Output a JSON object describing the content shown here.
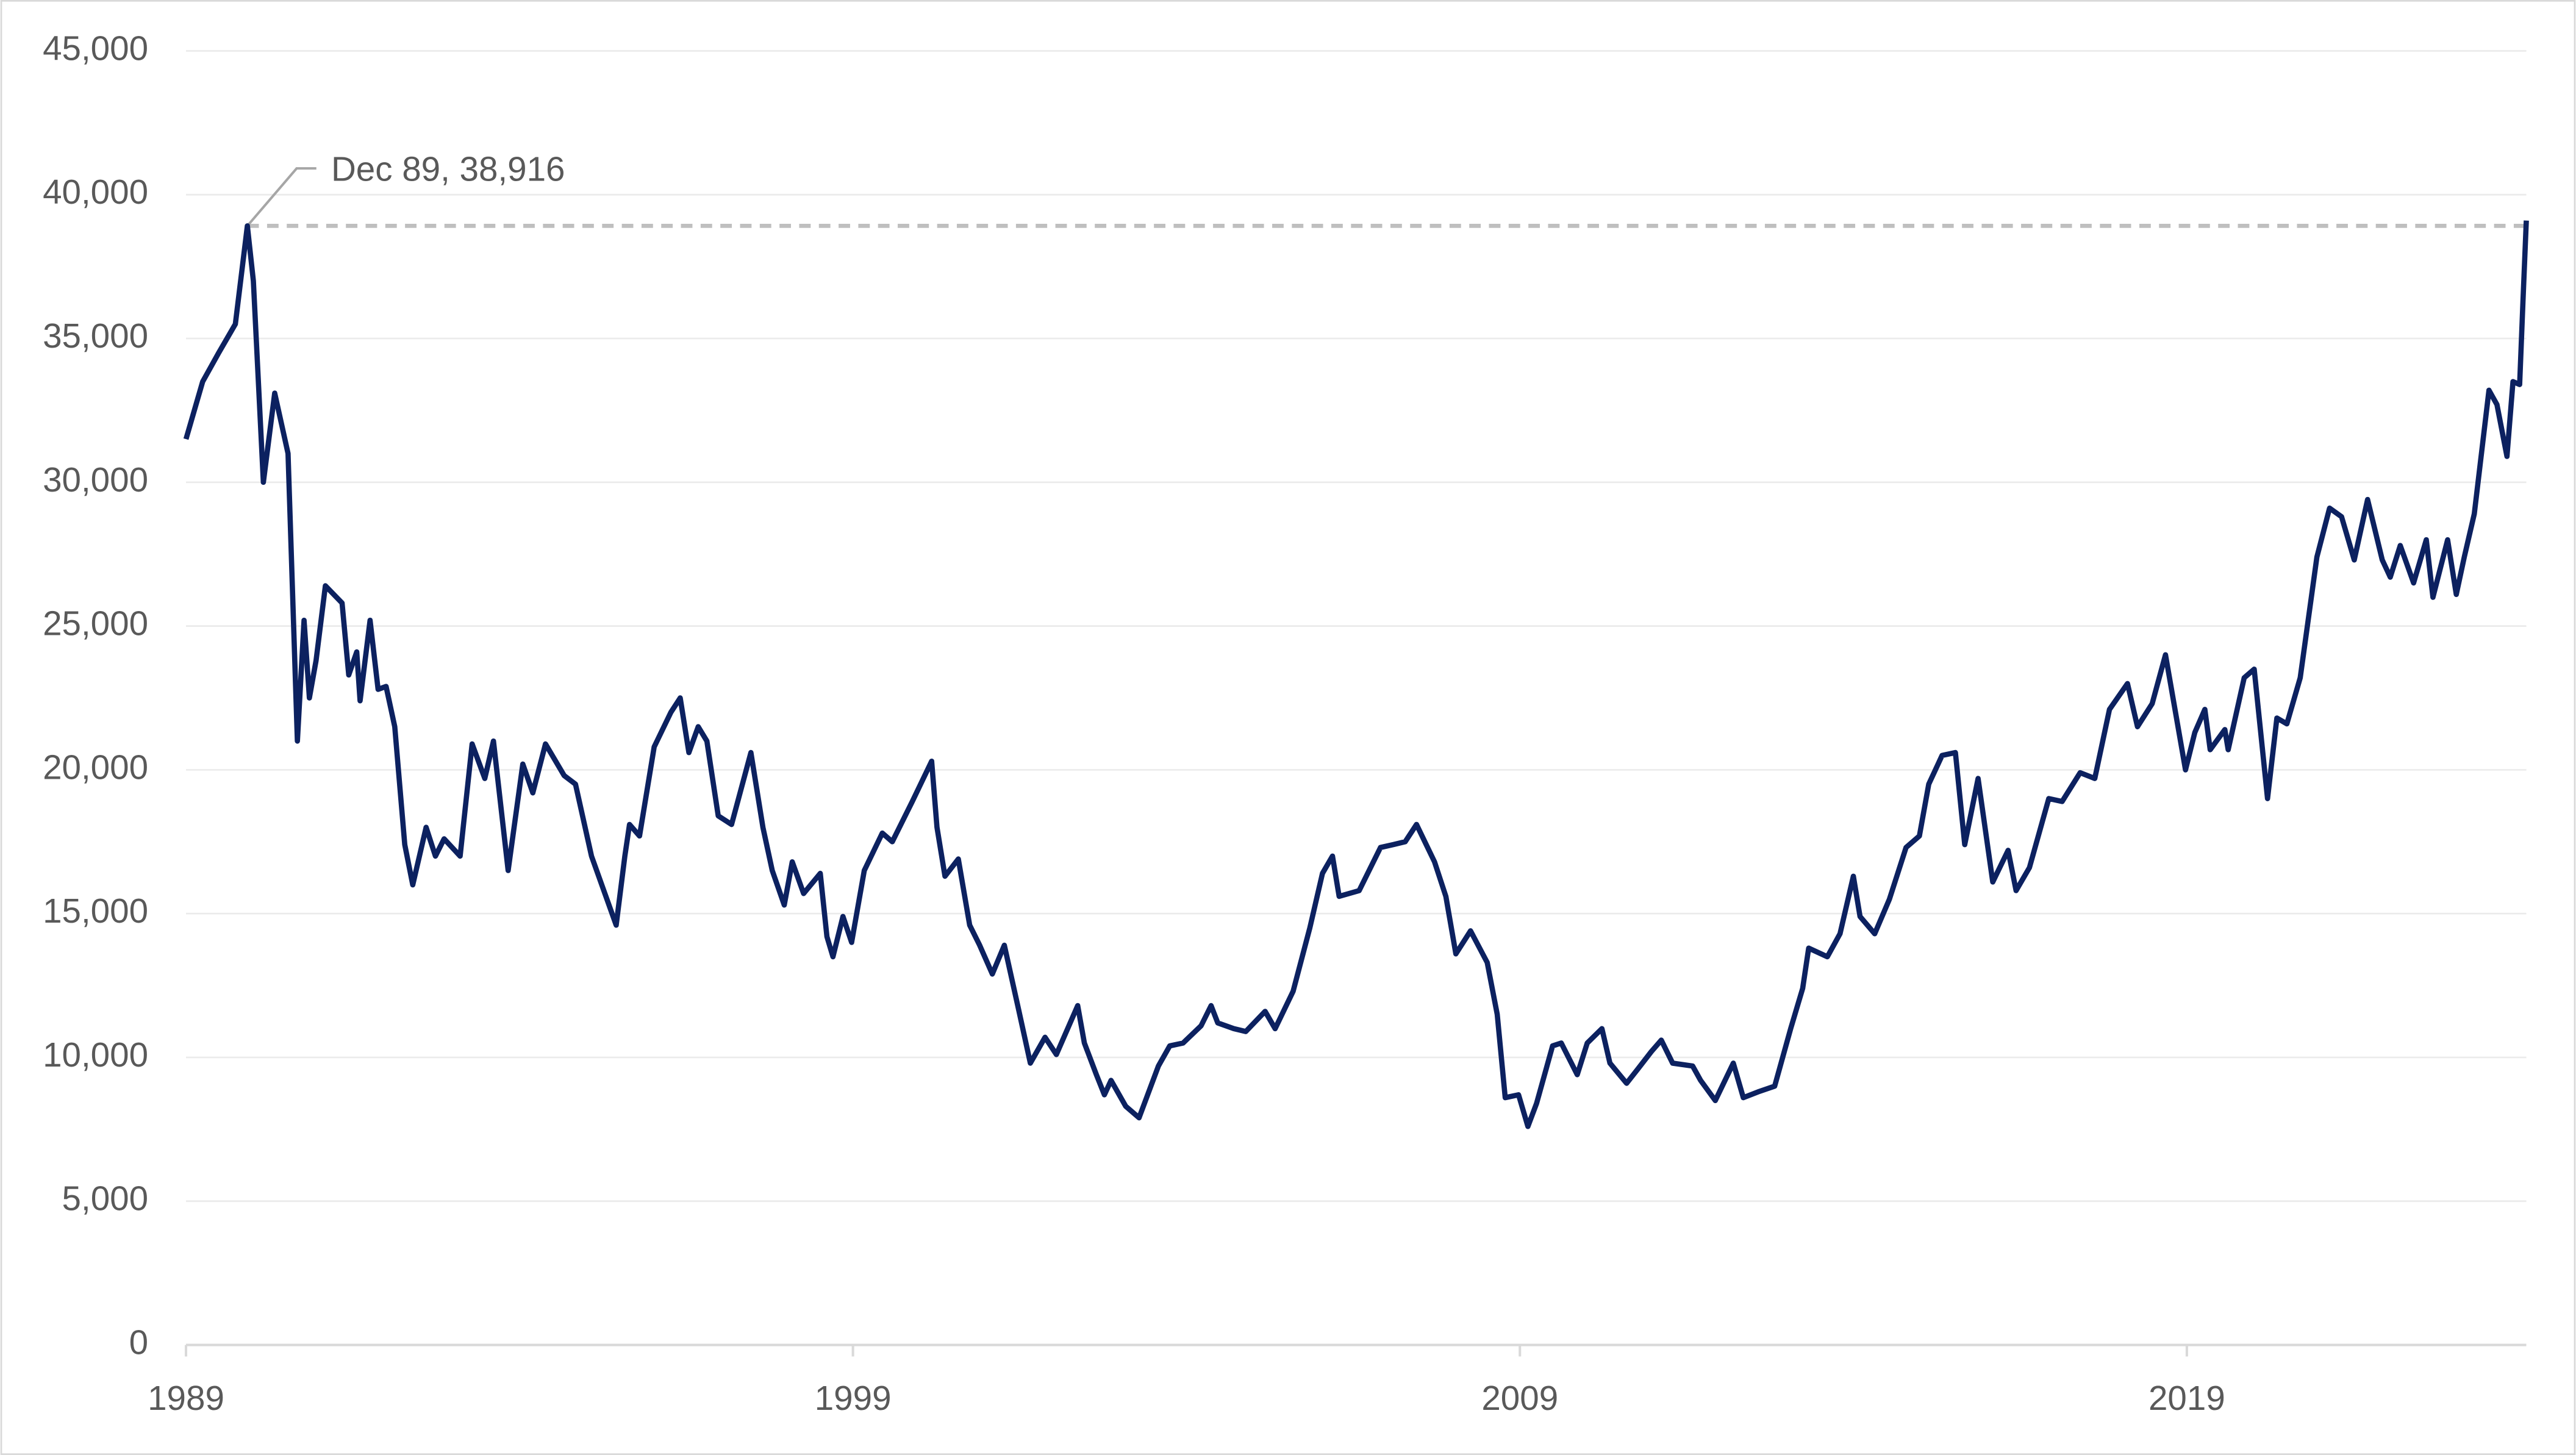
{
  "chart_data": {
    "type": "line",
    "annotation": {
      "text": "Dec 89, 38,916",
      "x": 1989.92,
      "y": 38916
    },
    "x": [
      1989.0,
      1989.25,
      1989.49,
      1989.74,
      1989.92,
      1990.01,
      1990.16,
      1990.33,
      1990.53,
      1990.67,
      1990.77,
      1990.85,
      1990.95,
      1991.09,
      1991.34,
      1991.44,
      1991.56,
      1991.61,
      1991.76,
      1991.88,
      1992.0,
      1992.13,
      1992.28,
      1992.4,
      1992.6,
      1992.74,
      1992.87,
      1993.11,
      1993.29,
      1993.48,
      1993.61,
      1993.83,
      1994.05,
      1994.2,
      1994.39,
      1994.67,
      1994.84,
      1995.08,
      1995.45,
      1995.58,
      1995.65,
      1995.8,
      1996.02,
      1996.27,
      1996.41,
      1996.54,
      1996.68,
      1996.81,
      1996.98,
      1997.18,
      1997.47,
      1997.65,
      1997.79,
      1997.97,
      1998.09,
      1998.26,
      1998.51,
      1998.61,
      1998.7,
      1998.85,
      1998.98,
      1999.17,
      1999.44,
      1999.59,
      1999.89,
      2000.18,
      2000.26,
      2000.38,
      2000.58,
      2000.75,
      2000.9,
      2001.09,
      2001.27,
      2001.49,
      2001.66,
      2001.88,
      2002.05,
      2002.37,
      2002.47,
      2002.65,
      2002.77,
      2002.87,
      2003.09,
      2003.29,
      2003.58,
      2003.75,
      2003.95,
      2004.22,
      2004.37,
      2004.47,
      2004.71,
      2004.89,
      2005.18,
      2005.33,
      2005.6,
      2005.85,
      2006.04,
      2006.19,
      2006.29,
      2006.59,
      2006.91,
      2007.1,
      2007.28,
      2007.45,
      2007.72,
      2007.89,
      2008.04,
      2008.26,
      2008.51,
      2008.66,
      2008.78,
      2008.98,
      2009.12,
      2009.25,
      2009.49,
      2009.62,
      2009.86,
      2010.01,
      2010.23,
      2010.35,
      2010.6,
      2010.77,
      2010.97,
      2011.12,
      2011.29,
      2011.59,
      2011.71,
      2011.93,
      2012.2,
      2012.35,
      2012.57,
      2012.82,
      2013.06,
      2013.24,
      2013.33,
      2013.61,
      2013.8,
      2014.0,
      2014.1,
      2014.32,
      2014.54,
      2014.79,
      2014.99,
      2015.13,
      2015.33,
      2015.53,
      2015.67,
      2015.87,
      2016.09,
      2016.32,
      2016.44,
      2016.64,
      2016.93,
      2017.13,
      2017.4,
      2017.62,
      2017.84,
      2018.11,
      2018.26,
      2018.48,
      2018.68,
      2018.98,
      2019.12,
      2019.27,
      2019.35,
      2019.57,
      2019.62,
      2019.86,
      2020.01,
      2020.21,
      2020.35,
      2020.5,
      2020.7,
      2020.95,
      2021.14,
      2021.32,
      2021.51,
      2021.71,
      2021.93,
      2022.05,
      2022.2,
      2022.4,
      2022.59,
      2022.69,
      2022.91,
      2023.04,
      2023.16,
      2023.31,
      2023.53,
      2023.65,
      2023.8,
      2023.89,
      2023.99,
      2024.04,
      2024.09
    ],
    "series": [
      {
        "color": "#0c2160",
        "values": [
          31500,
          33500,
          34500,
          35500,
          38916,
          37000,
          30000,
          33100,
          31000,
          21000,
          25200,
          22500,
          23800,
          26400,
          25800,
          23300,
          24100,
          22400,
          25200,
          22800,
          22900,
          21500,
          17400,
          16000,
          18000,
          17000,
          17600,
          17000,
          20900,
          19700,
          21000,
          16500,
          20200,
          19200,
          20900,
          19800,
          19500,
          17000,
          14600,
          17000,
          18100,
          17700,
          20800,
          22000,
          22500,
          20600,
          21500,
          21000,
          18400,
          18100,
          20600,
          18000,
          16500,
          15300,
          16800,
          15700,
          16400,
          14200,
          13500,
          14900,
          14000,
          16500,
          17800,
          17500,
          18900,
          20300,
          18000,
          16300,
          16900,
          14600,
          13900,
          12900,
          13900,
          11600,
          9800,
          10700,
          10100,
          11800,
          10500,
          9400,
          8700,
          9200,
          8300,
          7900,
          9700,
          10400,
          10500,
          11100,
          11800,
          11200,
          11000,
          10900,
          11600,
          11000,
          12300,
          14500,
          16400,
          17000,
          15600,
          15800,
          17300,
          17400,
          17500,
          18100,
          16800,
          15600,
          13600,
          14400,
          13300,
          11500,
          8600,
          8700,
          7600,
          8400,
          10400,
          10500,
          9400,
          10500,
          11000,
          9800,
          9100,
          9600,
          10200,
          10600,
          9800,
          9700,
          9200,
          8500,
          9800,
          8600,
          8800,
          9000,
          11000,
          12400,
          13800,
          13500,
          14300,
          16300,
          14900,
          14300,
          15500,
          17300,
          17700,
          19500,
          20500,
          20600,
          17400,
          19700,
          16100,
          17200,
          15800,
          16600,
          19000,
          18900,
          19900,
          19700,
          22100,
          23000,
          21500,
          22300,
          24000,
          20000,
          21300,
          22100,
          20700,
          21400,
          20700,
          23200,
          23500,
          19000,
          21800,
          21600,
          23200,
          27400,
          29100,
          28800,
          27300,
          29400,
          27300,
          26700,
          27800,
          26500,
          28000,
          26000,
          28000,
          26100,
          27400,
          28900,
          33200,
          32700,
          30900,
          33500,
          33400,
          36300,
          39100
        ]
      }
    ],
    "xlim": [
      1989,
      2024.09
    ],
    "xticks": [
      1989,
      1999,
      2009,
      2019
    ],
    "ylim": [
      0,
      45000
    ],
    "yticks": [
      0,
      {
        "value": 5000,
        "label": "5,000"
      },
      {
        "value": 10000,
        "label": "10,000"
      },
      {
        "value": 15000,
        "label": "15,000"
      },
      {
        "value": 20000,
        "label": "20,000"
      },
      {
        "value": 25000,
        "label": "25,000"
      },
      {
        "value": 30000,
        "label": "30,000"
      },
      {
        "value": 35000,
        "label": "35,000"
      },
      {
        "value": 40000,
        "label": "40,000"
      },
      {
        "value": 45000,
        "label": "45,000"
      }
    ],
    "grid": true
  }
}
